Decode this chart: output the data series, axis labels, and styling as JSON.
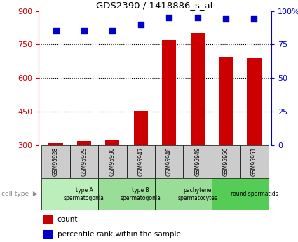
{
  "title": "GDS2390 / 1418886_s_at",
  "samples": [
    "GSM95928",
    "GSM95929",
    "GSM95930",
    "GSM95947",
    "GSM95948",
    "GSM95949",
    "GSM95950",
    "GSM95951"
  ],
  "counts": [
    310,
    320,
    325,
    455,
    770,
    800,
    695,
    690
  ],
  "percentile_ranks": [
    85,
    85,
    85,
    90,
    95,
    95,
    94,
    94
  ],
  "ylim_left": [
    300,
    900
  ],
  "ylim_right": [
    0,
    100
  ],
  "yticks_left": [
    300,
    450,
    600,
    750,
    900
  ],
  "yticks_right": [
    0,
    25,
    50,
    75,
    100
  ],
  "bar_color": "#cc0000",
  "dot_color": "#0000cc",
  "bar_width": 0.5,
  "sample_box_color": "#cccccc",
  "grid_color": "#000000",
  "left_axis_color": "#cc0000",
  "right_axis_color": "#0000cc",
  "legend_red_label": "count",
  "legend_blue_label": "percentile rank within the sample",
  "cell_groups": [
    {
      "label": "type A\nspermatogonia",
      "start": 0,
      "end": 2,
      "color": "#bbeebb"
    },
    {
      "label": "type B\nspermatogonia",
      "start": 2,
      "end": 4,
      "color": "#99dd99"
    },
    {
      "label": "pachytene\nspermatocytes",
      "start": 4,
      "end": 6,
      "color": "#99dd99"
    },
    {
      "label": "round spermatids",
      "start": 6,
      "end": 8,
      "color": "#55cc55"
    }
  ]
}
